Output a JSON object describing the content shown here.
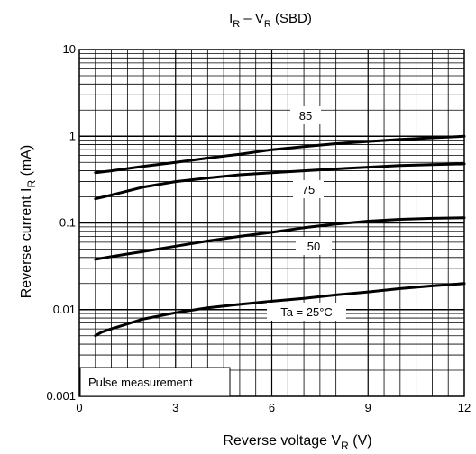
{
  "chart_data": {
    "type": "line",
    "title": {
      "main": "I",
      "main_sub": "R",
      "dash": " – V",
      "dash_sub": "R",
      "suffix": " (SBD)"
    },
    "xlabel": {
      "main": "Reverse voltage   V",
      "sub": "R",
      "suffix": "   (V)"
    },
    "ylabel": {
      "main": "Reverse current   I",
      "sub": "R",
      "suffix": "   (mA)"
    },
    "x_ticks": [
      "0",
      "3",
      "6",
      "9",
      "12"
    ],
    "y_ticks": [
      "0.001",
      "0.01",
      "0.1",
      "1",
      "10"
    ],
    "xlim": [
      0,
      12
    ],
    "ylim": [
      0.001,
      10
    ],
    "yscale": "log",
    "grid": true,
    "note": "Pulse measurement",
    "series": [
      {
        "name": "85",
        "x": [
          0.5,
          1,
          2,
          3,
          4,
          5,
          6,
          7,
          8,
          9,
          10,
          11,
          12
        ],
        "y": [
          0.38,
          0.4,
          0.45,
          0.5,
          0.56,
          0.62,
          0.7,
          0.76,
          0.82,
          0.87,
          0.92,
          0.96,
          1.0
        ]
      },
      {
        "name": "75",
        "x": [
          0.5,
          1,
          2,
          3,
          4,
          5,
          6,
          7,
          8,
          9,
          10,
          11,
          12
        ],
        "y": [
          0.19,
          0.21,
          0.26,
          0.3,
          0.33,
          0.36,
          0.38,
          0.4,
          0.42,
          0.44,
          0.46,
          0.47,
          0.48
        ]
      },
      {
        "name": "50",
        "x": [
          0.5,
          1,
          2,
          3,
          4,
          5,
          6,
          7,
          8,
          9,
          10,
          11,
          12
        ],
        "y": [
          0.038,
          0.041,
          0.047,
          0.054,
          0.062,
          0.07,
          0.078,
          0.088,
          0.097,
          0.105,
          0.11,
          0.113,
          0.115
        ]
      },
      {
        "name": "Ta = 25°C",
        "x": [
          0.5,
          0.7,
          1,
          2,
          3,
          4,
          5,
          6,
          7,
          8,
          9,
          10,
          11,
          12
        ],
        "y": [
          0.005,
          0.0055,
          0.006,
          0.0078,
          0.0092,
          0.0105,
          0.0115,
          0.0125,
          0.0135,
          0.0148,
          0.016,
          0.0175,
          0.0188,
          0.02
        ]
      }
    ]
  }
}
